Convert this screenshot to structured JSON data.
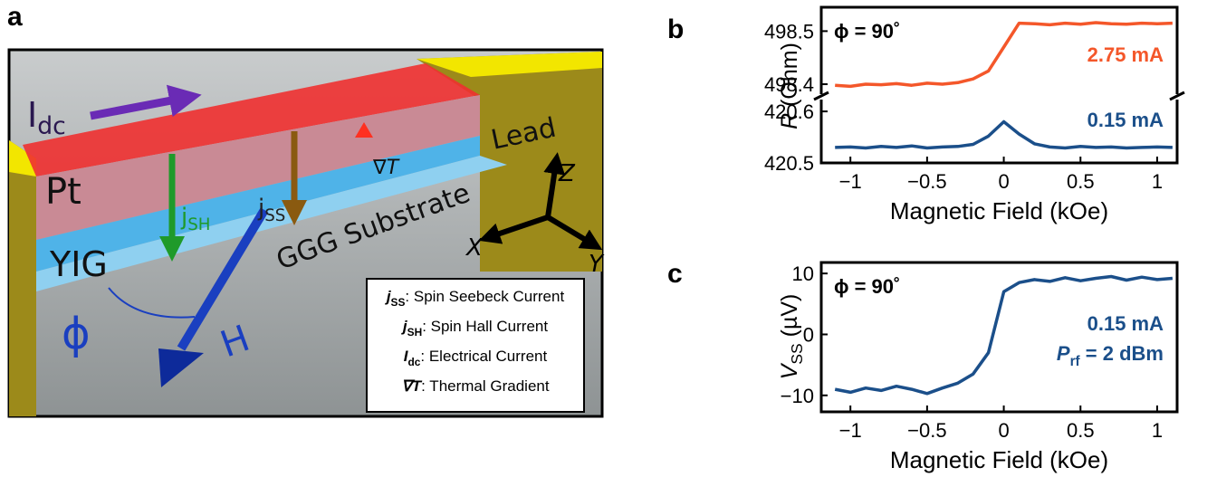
{
  "panels": {
    "a": "a",
    "b": "b",
    "c": "c"
  },
  "diagram": {
    "current": {
      "symbol": "I",
      "subscript": "dc"
    },
    "pt": "Pt",
    "yig": "YIG",
    "j_sh": {
      "symbol": "j",
      "subscript": "SH"
    },
    "j_ss": {
      "symbol": "j",
      "subscript": "SS"
    },
    "grad_t": "∇T",
    "lead": "Lead",
    "substrate": "GGG Substrate",
    "axes": {
      "z": "Z",
      "x": "X",
      "y": "Y"
    },
    "angle": "ϕ",
    "field": "H",
    "legend": [
      {
        "symbol": "j",
        "subscript": "SS",
        "text": ": Spin Seebeck Current"
      },
      {
        "symbol": "j",
        "subscript": "SH",
        "text": ": Spin Hall Current"
      },
      {
        "symbol": "I",
        "subscript": "dc",
        "text": ": Electrical Current"
      },
      {
        "symbol": "∇T",
        "text": ": Thermal Gradient"
      }
    ]
  },
  "chart_data": [
    {
      "type": "line",
      "xlabel": "Magnetic Field (kOe)",
      "ylabel": {
        "symbol": "R",
        "unit": " (Ohm)"
      },
      "annotation": "ϕ = 90˚",
      "x": [
        -1.1,
        -1.0,
        -0.9,
        -0.8,
        -0.7,
        -0.6,
        -0.5,
        -0.4,
        -0.3,
        -0.2,
        -0.1,
        0,
        0.1,
        0.2,
        0.3,
        0.4,
        0.5,
        0.6,
        0.7,
        0.8,
        0.9,
        1.0,
        1.1
      ],
      "xlim": [
        -1.19,
        1.13
      ],
      "xticks": [
        {
          "value": -1,
          "label": "−1"
        },
        {
          "value": -0.5,
          "label": "−0.5"
        },
        0,
        0.5,
        1
      ],
      "ylim": [
        420.5,
        420.623
      ],
      "yticks": [
        420.5,
        420.6
      ],
      "y2lim": [
        498.383,
        498.545
      ],
      "y2ticks": [
        498.4,
        498.5
      ],
      "series": [
        {
          "name": "2.75 mA",
          "color": "#f4572a",
          "axis": "y2",
          "values": [
            498.398,
            498.396,
            498.4,
            498.399,
            498.401,
            498.398,
            498.402,
            498.4,
            498.403,
            498.41,
            498.425,
            498.47,
            498.515,
            498.514,
            498.512,
            498.515,
            498.513,
            498.516,
            498.514,
            498.513,
            498.515,
            498.514,
            498.515
          ]
        },
        {
          "name": "0.15 mA",
          "color": "#1b4f8a",
          "values": [
            420.53,
            420.531,
            420.529,
            420.532,
            420.53,
            420.533,
            420.529,
            420.531,
            420.532,
            420.536,
            420.552,
            420.58,
            420.556,
            420.537,
            420.531,
            420.529,
            420.532,
            420.53,
            420.531,
            420.529,
            420.53,
            420.531,
            420.53
          ]
        }
      ]
    },
    {
      "type": "line",
      "xlabel": "Magnetic Field (kOe)",
      "ylabel": {
        "symbol": "V",
        "subscript": "SS",
        "unit": " (µV)"
      },
      "annotation": "ϕ = 90˚",
      "power": {
        "symbol": "P",
        "subscript": "rf",
        "text": " = 2 dBm"
      },
      "x": [
        -1.1,
        -1.0,
        -0.9,
        -0.8,
        -0.7,
        -0.6,
        -0.5,
        -0.4,
        -0.3,
        -0.2,
        -0.1,
        0,
        0.1,
        0.2,
        0.3,
        0.4,
        0.5,
        0.6,
        0.7,
        0.8,
        0.9,
        1.0,
        1.1
      ],
      "xlim": [
        -1.19,
        1.13
      ],
      "xticks": [
        {
          "value": -1,
          "label": "−1"
        },
        {
          "value": -0.5,
          "label": "−0.5"
        },
        0,
        0.5,
        1
      ],
      "ylim": [
        -12.7,
        11.8
      ],
      "yticks": [
        10,
        0,
        {
          "value": -10,
          "label": "−10"
        }
      ],
      "series": [
        {
          "name": "0.15 mA",
          "color": "#1b4f8a",
          "values": [
            -9,
            -9.5,
            -8.8,
            -9.2,
            -8.5,
            -9,
            -9.7,
            -8.8,
            -8,
            -6.5,
            -3,
            7,
            8.5,
            9,
            8.7,
            9.3,
            8.8,
            9.2,
            9.5,
            8.9,
            9.4,
            9,
            9.2
          ]
        }
      ]
    }
  ]
}
